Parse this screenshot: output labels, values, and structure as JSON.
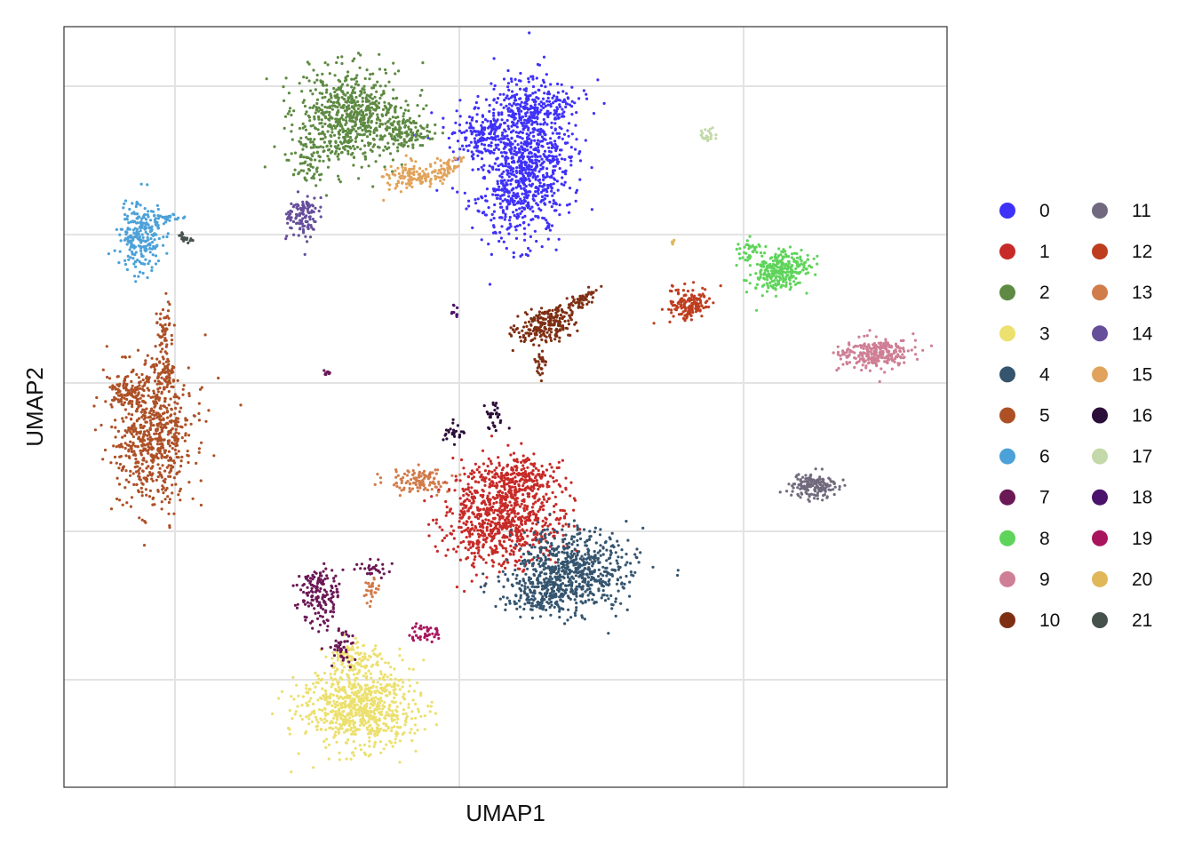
{
  "chart_data": {
    "type": "scatter",
    "title": "",
    "xlabel": "UMAP1",
    "ylabel": "UMAP2",
    "x_ticks_labeled": false,
    "y_ticks_labeled": false,
    "grid": true,
    "legend_placement": "right",
    "legend_columns": 2,
    "clusters": [
      {
        "name": "0",
        "color": "#3F31F8"
      },
      {
        "name": "1",
        "color": "#C72A27"
      },
      {
        "name": "2",
        "color": "#5E8A43"
      },
      {
        "name": "3",
        "color": "#ECE06F"
      },
      {
        "name": "4",
        "color": "#35556F"
      },
      {
        "name": "5",
        "color": "#AD5026"
      },
      {
        "name": "6",
        "color": "#4CA1D8"
      },
      {
        "name": "7",
        "color": "#6B1856"
      },
      {
        "name": "8",
        "color": "#5ED45A"
      },
      {
        "name": "9",
        "color": "#CF7F95"
      },
      {
        "name": "10",
        "color": "#7E2F13"
      },
      {
        "name": "11",
        "color": "#716A7E"
      },
      {
        "name": "12",
        "color": "#BE3D1F"
      },
      {
        "name": "13",
        "color": "#D17C4B"
      },
      {
        "name": "14",
        "color": "#674E9B"
      },
      {
        "name": "15",
        "color": "#E1A35B"
      },
      {
        "name": "16",
        "color": "#2B0E3A"
      },
      {
        "name": "17",
        "color": "#C3D9A9"
      },
      {
        "name": "18",
        "color": "#4A126A"
      },
      {
        "name": "19",
        "color": "#A9155C"
      },
      {
        "name": "20",
        "color": "#E0B759"
      },
      {
        "name": "21",
        "color": "#45524C"
      }
    ]
  }
}
